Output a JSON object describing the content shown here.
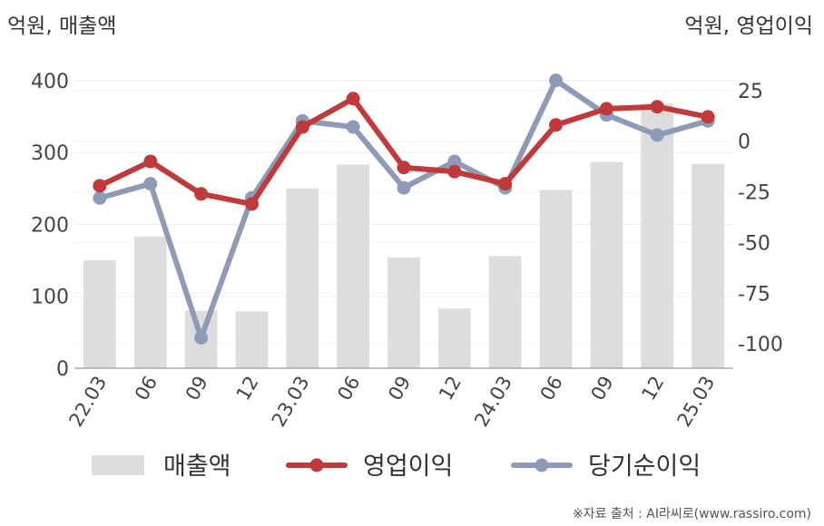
{
  "chart_data": {
    "type": "bar+line",
    "categories": [
      "22.03",
      "06",
      "09",
      "12",
      "23.03",
      "06",
      "09",
      "12",
      "24.03",
      "06",
      "09",
      "12",
      "25.03"
    ],
    "left_axis": {
      "unit_label": "억원, 매출액",
      "ylim": [
        0,
        420
      ],
      "ticks": [
        0,
        100,
        200,
        300,
        400
      ]
    },
    "right_axis": {
      "unit_label": "억원, 영업이익",
      "ylim": [
        -112,
        37
      ],
      "ticks": [
        25,
        0,
        -25,
        -50,
        -75,
        -100
      ]
    },
    "series": [
      {
        "name": "매출액",
        "kind": "bar",
        "axis": "left",
        "color": "#dddddd",
        "values": [
          150,
          183,
          80,
          79,
          250,
          283,
          154,
          83,
          156,
          248,
          287,
          368,
          284
        ]
      },
      {
        "name": "영업이익",
        "kind": "line",
        "axis": "right",
        "color": "#c0393b",
        "values": [
          -22,
          -10,
          -26,
          -31,
          7,
          21,
          -13,
          -15,
          -21,
          8,
          16,
          17,
          12
        ]
      },
      {
        "name": "당기순이익",
        "kind": "line",
        "axis": "right",
        "color": "#8e9bb7",
        "values": [
          -28,
          -21,
          -97,
          -28,
          10,
          7,
          -23,
          -10,
          -23,
          30,
          13,
          3,
          10
        ]
      }
    ],
    "grid": true,
    "legend": "bottom"
  },
  "source_note": "※자료 출처 : AI라씨로(www.rassiro.com)"
}
